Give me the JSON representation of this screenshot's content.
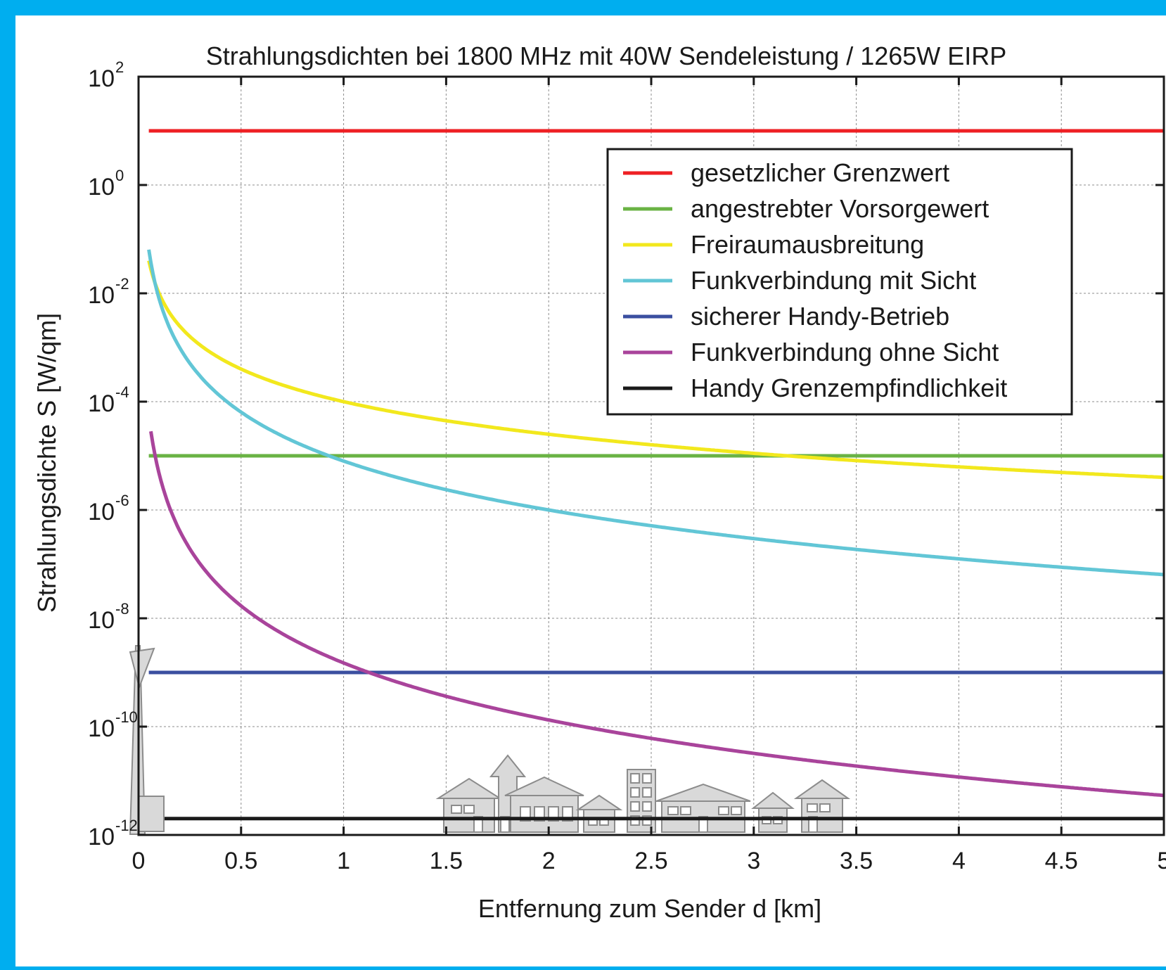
{
  "colors": {
    "frame_border": "#00aeef",
    "background": "#ffffff",
    "grid": "#8c8c8c",
    "axis": "#1a1a1a",
    "building_fill": "#d9d9d9",
    "building_stroke": "#8c8c8c"
  },
  "chart_data": {
    "type": "line",
    "title": "Strahlungsdichten bei 1800 MHz mit 40W Sendeleistung / 1265W EIRP",
    "xlabel": "Entfernung zum Sender d [km]",
    "ylabel": "Strahlungsdichte S [W/qm]",
    "x_scale": "linear",
    "y_scale": "log",
    "xlim": [
      0,
      5
    ],
    "ylim": [
      1e-12,
      100
    ],
    "x_ticks": [
      0,
      0.5,
      1,
      1.5,
      2,
      2.5,
      3,
      3.5,
      4,
      4.5,
      5
    ],
    "x_tick_labels": [
      "0",
      "0.5",
      "1",
      "1.5",
      "2",
      "2.5",
      "3",
      "3.5",
      "4",
      "4.5",
      "5"
    ],
    "y_ticks": [
      {
        "base": "10",
        "exp": "2"
      },
      {
        "base": "10",
        "exp": "0"
      },
      {
        "base": "10",
        "exp": "-2"
      },
      {
        "base": "10",
        "exp": "-4"
      },
      {
        "base": "10",
        "exp": "-6"
      },
      {
        "base": "10",
        "exp": "-8"
      },
      {
        "base": "10",
        "exp": "-10"
      },
      {
        "base": "10",
        "exp": "-12"
      }
    ],
    "grid": true,
    "legend_position": "top-right",
    "series": [
      {
        "name": "gesetzlicher Grenzwert",
        "color": "#ee2024",
        "kind": "constant",
        "value": 10,
        "x_start": 0.05
      },
      {
        "name": "angestrebter Vorsorgewert",
        "color": "#6ab344",
        "kind": "constant",
        "value": 1e-05,
        "x_start": 0.05
      },
      {
        "name": "Freiraumausbreitung",
        "color": "#f2e81d",
        "kind": "power",
        "coef": 0.0001,
        "exponent": -2,
        "x_start": 0.05
      },
      {
        "name": "Funkverbindung mit Sicht",
        "color": "#62c6d6",
        "kind": "power",
        "coef": 8e-06,
        "exponent": -3,
        "x_start": 0.05
      },
      {
        "name": "sicherer Handy-Betrieb",
        "color": "#3b4fa0",
        "kind": "constant",
        "value": 1e-09,
        "x_start": 0.05
      },
      {
        "name": "Funkverbindung ohne Sicht",
        "color": "#a9449b",
        "kind": "power",
        "coef": 1.5e-09,
        "exponent": -3.5,
        "x_start": 0.06
      },
      {
        "name": "Handy Grenzempfindlichkeit",
        "color": "#1a1a1a",
        "kind": "constant",
        "value": 2e-12,
        "x_start": 0.05
      }
    ]
  }
}
